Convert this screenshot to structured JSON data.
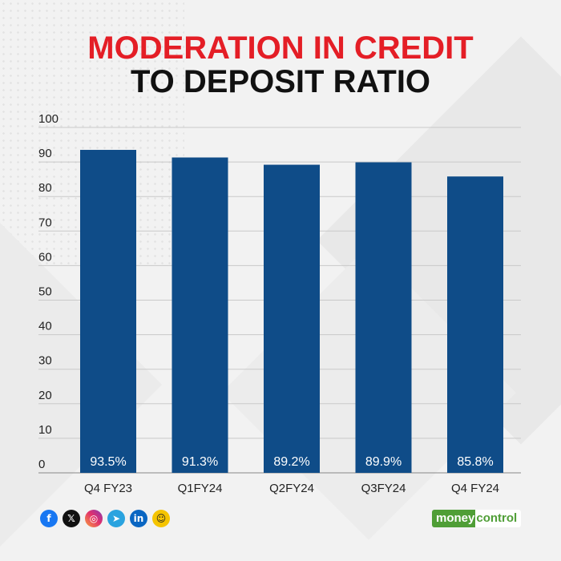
{
  "title": {
    "line1": "MODERATION IN CREDIT",
    "line2": "TO DEPOSIT RATIO"
  },
  "colors": {
    "title_accent": "#e41e26",
    "bar": "#0f4c88",
    "grid": "#c9c9c9",
    "logo_green": "#4f9e36"
  },
  "chart_data": {
    "type": "bar",
    "title": "MODERATION IN CREDIT TO DEPOSIT RATIO",
    "xlabel": "",
    "ylabel": "",
    "categories": [
      "Q4 FY23",
      "Q1FY24",
      "Q2FY24",
      "Q3FY24",
      "Q4 FY24"
    ],
    "values": [
      93.5,
      91.3,
      89.2,
      89.9,
      85.8
    ],
    "data_labels": [
      "93.5%",
      "91.3%",
      "89.2%",
      "89.9%",
      "85.8%"
    ],
    "ylim": [
      0,
      100
    ],
    "yticks": [
      0,
      10,
      20,
      30,
      40,
      50,
      60,
      70,
      80,
      90,
      100
    ],
    "grid": true,
    "legend": "none"
  },
  "footer": {
    "social_icons": [
      {
        "name": "facebook-icon",
        "glyph": "f"
      },
      {
        "name": "x-icon",
        "glyph": "𝕏"
      },
      {
        "name": "instagram-icon",
        "glyph": "◎"
      },
      {
        "name": "telegram-icon",
        "glyph": "➤"
      },
      {
        "name": "linkedin-icon",
        "glyph": "in"
      },
      {
        "name": "snapchat-icon",
        "glyph": "☺"
      }
    ],
    "logo_part1": "money",
    "logo_part2": "control"
  }
}
